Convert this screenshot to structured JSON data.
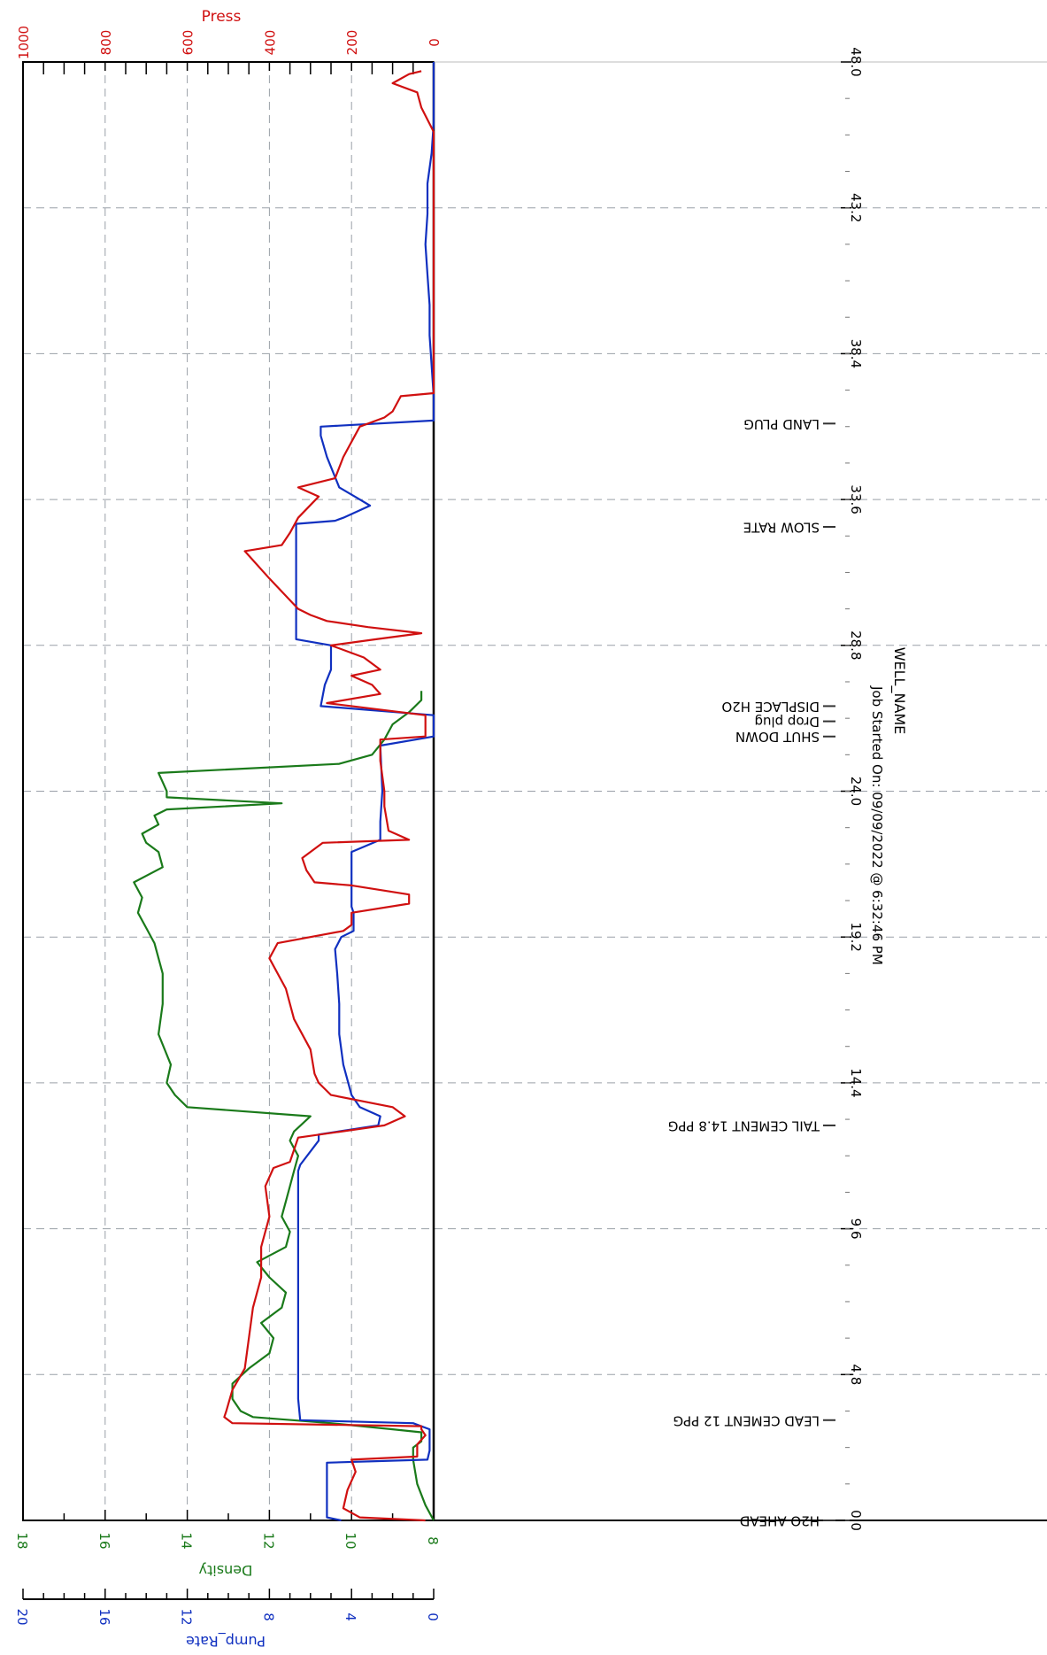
{
  "chart_data": {
    "type": "line",
    "title": "WELL_NAME",
    "footer": "Job Started On: 09/09/2022 @ 6:32:46 PM",
    "orientation": "rotated-90",
    "colors": {
      "press": "#d01010",
      "density": "#1a7a1a",
      "pump_rate": "#1030c0",
      "axis": "#000000",
      "grid": "#9aa0a8"
    },
    "x_axis": {
      "ticks": [
        "0.0",
        "4.8",
        "9.6",
        "14.4",
        "19.2",
        "24.0",
        "28.8",
        "33.6",
        "38.4",
        "43.2",
        "48.0"
      ],
      "range": [
        0,
        48
      ],
      "grid": true
    },
    "press_axis": {
      "label": "Press",
      "ticks": [
        "1000",
        "800",
        "600",
        "400",
        "200",
        "0"
      ],
      "range": [
        0,
        1000
      ],
      "grid": true
    },
    "density_axis": {
      "label": "Density",
      "ticks": [
        "18",
        "16",
        "14",
        "12",
        "10",
        "8"
      ],
      "range": [
        8,
        18
      ]
    },
    "pump_rate_axis": {
      "label": "Pump_Rate",
      "ticks": [
        "20",
        "16",
        "12",
        "8",
        "4",
        "0"
      ],
      "range": [
        0,
        20
      ]
    },
    "events": [
      {
        "label": "H2O AHEAD",
        "t": 0.0
      },
      {
        "label": "LEAD CEMENT 12 PPG",
        "t": 3.3
      },
      {
        "label": "TAIL CEMENT 14.8 PPG",
        "t": 13.0
      },
      {
        "label": "SHUT DOWN",
        "t": 25.8
      },
      {
        "label": "Drop plug",
        "t": 26.3
      },
      {
        "label": "DISPLACE H2O",
        "t": 26.8
      },
      {
        "label": "SLOW RATE",
        "t": 32.7
      },
      {
        "label": "LAND PLUG",
        "t": 36.1
      }
    ],
    "series": [
      {
        "name": "Press",
        "color": "#d01010",
        "points": [
          [
            0,
            20
          ],
          [
            0.1,
            180
          ],
          [
            0.4,
            220
          ],
          [
            1.0,
            210
          ],
          [
            1.6,
            190
          ],
          [
            2.0,
            200
          ],
          [
            2.1,
            40
          ],
          [
            2.5,
            40
          ],
          [
            2.8,
            20
          ],
          [
            3.0,
            30
          ],
          [
            3.1,
            30
          ],
          [
            3.2,
            490
          ],
          [
            3.4,
            510
          ],
          [
            3.6,
            505
          ],
          [
            4.3,
            490
          ],
          [
            5.0,
            460
          ],
          [
            6.0,
            450
          ],
          [
            7.0,
            440
          ],
          [
            8.0,
            420
          ],
          [
            9.0,
            420
          ],
          [
            10.0,
            400
          ],
          [
            11.0,
            410
          ],
          [
            11.6,
            390
          ],
          [
            11.8,
            350
          ],
          [
            12.6,
            330
          ],
          [
            13.0,
            120
          ],
          [
            13.3,
            70
          ],
          [
            13.6,
            100
          ],
          [
            14.0,
            250
          ],
          [
            14.4,
            280
          ],
          [
            14.7,
            290
          ],
          [
            15.5,
            300
          ],
          [
            16.5,
            340
          ],
          [
            17.5,
            360
          ],
          [
            18.5,
            400
          ],
          [
            19.0,
            380
          ],
          [
            19.4,
            220
          ],
          [
            19.6,
            200
          ],
          [
            20.0,
            200
          ],
          [
            20.3,
            60
          ],
          [
            20.6,
            60
          ],
          [
            20.9,
            200
          ],
          [
            21.0,
            290
          ],
          [
            21.4,
            310
          ],
          [
            21.8,
            320
          ],
          [
            22.3,
            270
          ],
          [
            22.4,
            60
          ],
          [
            22.7,
            110
          ],
          [
            23.5,
            120
          ],
          [
            24.0,
            120
          ],
          [
            25.0,
            130
          ],
          [
            25.7,
            130
          ],
          [
            25.8,
            20
          ],
          [
            26.5,
            20
          ],
          [
            26.9,
            260
          ],
          [
            27.2,
            130
          ],
          [
            27.5,
            150
          ],
          [
            27.8,
            200
          ],
          [
            28.0,
            130
          ],
          [
            28.4,
            170
          ],
          [
            28.8,
            250
          ],
          [
            29.0,
            140
          ],
          [
            29.2,
            30
          ],
          [
            29.4,
            160
          ],
          [
            29.6,
            260
          ],
          [
            29.8,
            300
          ],
          [
            30.0,
            330
          ],
          [
            31.0,
            400
          ],
          [
            31.9,
            460
          ],
          [
            32.1,
            370
          ],
          [
            32.5,
            350
          ],
          [
            33.0,
            330
          ],
          [
            33.7,
            280
          ],
          [
            34.0,
            330
          ],
          [
            34.3,
            240
          ],
          [
            35.0,
            220
          ],
          [
            36.0,
            180
          ],
          [
            36.3,
            120
          ],
          [
            36.5,
            100
          ],
          [
            37.0,
            80
          ],
          [
            37.1,
            0
          ],
          [
            38.0,
            0
          ],
          [
            39.0,
            0
          ],
          [
            40.0,
            0
          ],
          [
            42.0,
            0
          ],
          [
            44.0,
            0
          ],
          [
            45.7,
            0
          ],
          [
            46.5,
            30
          ],
          [
            47.0,
            40
          ],
          [
            47.3,
            100
          ],
          [
            47.6,
            60
          ],
          [
            47.7,
            30
          ]
        ]
      },
      {
        "name": "Density",
        "color": "#1a7a1a",
        "points": [
          [
            0,
            8.0
          ],
          [
            0.5,
            8.2
          ],
          [
            1.2,
            8.4
          ],
          [
            2.0,
            8.5
          ],
          [
            2.4,
            8.5
          ],
          [
            2.6,
            8.3
          ],
          [
            2.9,
            8.3
          ],
          [
            3.0,
            9.0
          ],
          [
            3.2,
            10.5
          ],
          [
            3.4,
            12.4
          ],
          [
            3.6,
            12.7
          ],
          [
            4.0,
            12.9
          ],
          [
            4.5,
            12.9
          ],
          [
            5.0,
            12.5
          ],
          [
            5.5,
            12.0
          ],
          [
            6.0,
            11.9
          ],
          [
            6.5,
            12.2
          ],
          [
            7.0,
            11.7
          ],
          [
            7.5,
            11.6
          ],
          [
            8.0,
            12.0
          ],
          [
            8.5,
            12.3
          ],
          [
            9.0,
            11.6
          ],
          [
            9.5,
            11.5
          ],
          [
            10.0,
            11.7
          ],
          [
            10.5,
            11.6
          ],
          [
            11.0,
            11.5
          ],
          [
            11.5,
            11.4
          ],
          [
            12.0,
            11.3
          ],
          [
            12.5,
            11.5
          ],
          [
            12.8,
            11.4
          ],
          [
            13.3,
            11.0
          ],
          [
            13.6,
            14.0
          ],
          [
            14.0,
            14.3
          ],
          [
            14.4,
            14.5
          ],
          [
            15.0,
            14.4
          ],
          [
            16.0,
            14.7
          ],
          [
            17.0,
            14.6
          ],
          [
            18.0,
            14.6
          ],
          [
            19.0,
            14.8
          ],
          [
            19.5,
            15.0
          ],
          [
            20.0,
            15.2
          ],
          [
            20.5,
            15.1
          ],
          [
            21.0,
            15.3
          ],
          [
            21.5,
            14.6
          ],
          [
            22.0,
            14.7
          ],
          [
            22.3,
            15.0
          ],
          [
            22.6,
            15.1
          ],
          [
            22.9,
            14.7
          ],
          [
            23.2,
            14.8
          ],
          [
            23.4,
            14.5
          ],
          [
            23.6,
            11.7
          ],
          [
            23.8,
            14.5
          ],
          [
            24.0,
            14.5
          ],
          [
            24.3,
            14.6
          ],
          [
            24.6,
            14.7
          ],
          [
            24.9,
            10.3
          ],
          [
            25.2,
            9.5
          ],
          [
            25.7,
            9.2
          ],
          [
            26.2,
            9.0
          ],
          [
            26.6,
            8.6
          ],
          [
            27.0,
            8.3
          ],
          [
            27.3,
            8.3
          ]
        ]
      },
      {
        "name": "Pump_Rate",
        "color": "#1030c0",
        "points": [
          [
            0,
            4.5
          ],
          [
            0.1,
            5.2
          ],
          [
            1.0,
            5.2
          ],
          [
            1.9,
            5.2
          ],
          [
            2.0,
            0.3
          ],
          [
            2.3,
            0.2
          ],
          [
            3.0,
            0.2
          ],
          [
            3.2,
            1.0
          ],
          [
            3.3,
            6.5
          ],
          [
            4.0,
            6.6
          ],
          [
            5.0,
            6.6
          ],
          [
            6.0,
            6.6
          ],
          [
            7.0,
            6.6
          ],
          [
            8.0,
            6.6
          ],
          [
            9.0,
            6.6
          ],
          [
            10.0,
            6.6
          ],
          [
            11.0,
            6.6
          ],
          [
            11.5,
            6.6
          ],
          [
            11.7,
            6.5
          ],
          [
            12.5,
            5.6
          ],
          [
            12.7,
            5.6
          ],
          [
            13.0,
            2.7
          ],
          [
            13.3,
            2.6
          ],
          [
            13.6,
            3.6
          ],
          [
            14.0,
            4.0
          ],
          [
            15.0,
            4.4
          ],
          [
            16.0,
            4.6
          ],
          [
            17.0,
            4.6
          ],
          [
            18.0,
            4.7
          ],
          [
            18.8,
            4.8
          ],
          [
            19.2,
            4.5
          ],
          [
            19.4,
            3.9
          ],
          [
            20.0,
            3.9
          ],
          [
            20.2,
            4.0
          ],
          [
            21.0,
            4.0
          ],
          [
            21.5,
            4.0
          ],
          [
            22.0,
            4.0
          ],
          [
            22.4,
            2.6
          ],
          [
            23.0,
            2.6
          ],
          [
            24.0,
            2.5
          ],
          [
            25.5,
            2.6
          ],
          [
            25.8,
            0.0
          ],
          [
            26.5,
            0.0
          ],
          [
            26.8,
            5.5
          ],
          [
            27.5,
            5.3
          ],
          [
            28.0,
            5.0
          ],
          [
            28.5,
            5.0
          ],
          [
            28.8,
            5.0
          ],
          [
            29.0,
            6.7
          ],
          [
            30.0,
            6.7
          ],
          [
            31.0,
            6.7
          ],
          [
            32.0,
            6.7
          ],
          [
            32.8,
            6.7
          ],
          [
            32.9,
            4.8
          ],
          [
            33.0,
            4.4
          ],
          [
            33.4,
            3.1
          ],
          [
            33.6,
            3.6
          ],
          [
            34.0,
            4.6
          ],
          [
            35.0,
            5.2
          ],
          [
            35.7,
            5.5
          ],
          [
            36.0,
            5.5
          ],
          [
            36.2,
            0.0
          ],
          [
            37.0,
            0.0
          ],
          [
            38.0,
            0.1
          ],
          [
            39.0,
            0.2
          ],
          [
            40.0,
            0.2
          ],
          [
            41.0,
            0.3
          ],
          [
            42.0,
            0.4
          ],
          [
            43.0,
            0.3
          ],
          [
            44.0,
            0.3
          ],
          [
            45.0,
            0.1
          ],
          [
            46.0,
            0.0
          ],
          [
            47.0,
            0.0
          ],
          [
            48.0,
            0.0
          ]
        ]
      }
    ]
  }
}
